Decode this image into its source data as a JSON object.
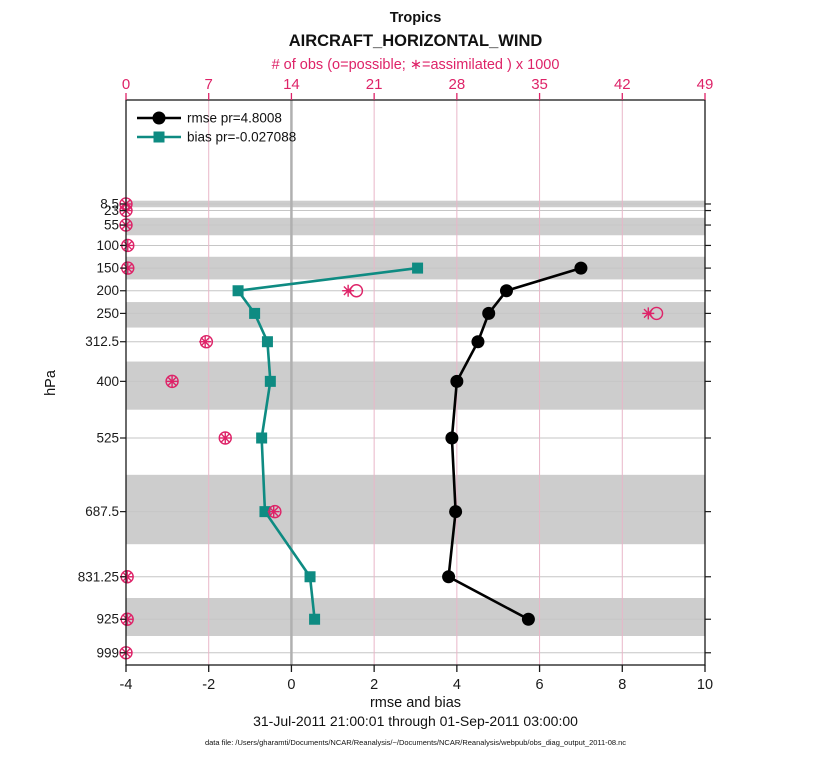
{
  "title": {
    "region": "Tropics",
    "variable": "AIRCRAFT_HORIZONTAL_WIND"
  },
  "axes": {
    "top": {
      "label": "# of obs (o=possible; ∗=assimilated ) x 1000",
      "ticks": [
        0,
        7,
        14,
        21,
        28,
        35,
        42,
        49
      ],
      "range": [
        0,
        49
      ],
      "color": "#de2368"
    },
    "bottom": {
      "label": "rmse and bias",
      "ticks": [
        -4,
        -2,
        0,
        2,
        4,
        6,
        8,
        10
      ],
      "range": [
        -4,
        10
      ]
    },
    "left": {
      "label": "hPa"
    }
  },
  "legend": {
    "rmse": {
      "label": "rmse pr=4.8008",
      "color": "#000000",
      "marker": "circle"
    },
    "bias": {
      "label": "bias pr=-0.027088",
      "color": "#0e8b82",
      "marker": "square"
    }
  },
  "footer": {
    "timespan": "31-Jul-2011 21:00:01 through 01-Sep-2011 03:00:00",
    "datafile": "data file: /Users/gharamti/Documents/NCAR/Reanalysis/~/Documents/NCAR/Reanalysis/webpub/obs_diag_output_2011-08.nc"
  },
  "colors": {
    "pink": "#de2368",
    "pink_grid": "#e9b6c8",
    "teal": "#0e8b82",
    "band_gray": "#cdcdcd",
    "level_line": "#c6c6c6",
    "zero_line": "#b0b0b0",
    "axis_black": "#1a1a1a"
  },
  "chart_data": {
    "type": "line",
    "profile_axis": "pressure_hPa_linear",
    "levels_hpa": [
      8.5,
      23,
      55,
      100,
      150,
      200,
      250,
      312.5,
      400,
      525,
      687.5,
      831.25,
      925,
      999
    ],
    "shaded_levels_hpa": [
      8.5,
      55,
      150,
      250,
      400,
      687.5,
      925
    ],
    "ylim_pressure": [
      -221,
      1026
    ],
    "xlim_rmse_bias": [
      -4,
      10
    ],
    "xlim_obs_thousands": [
      0,
      49
    ],
    "zero_reference_x": 0,
    "series": [
      {
        "name": "rmse",
        "marker": "circle",
        "color": "#000000",
        "points": [
          {
            "level": 150,
            "value": 7.0
          },
          {
            "level": 200,
            "value": 5.2
          },
          {
            "level": 250,
            "value": 4.77
          },
          {
            "level": 312.5,
            "value": 4.51
          },
          {
            "level": 400,
            "value": 4.0
          },
          {
            "level": 525,
            "value": 3.88
          },
          {
            "level": 687.5,
            "value": 3.97
          },
          {
            "level": 831.25,
            "value": 3.8
          },
          {
            "level": 925,
            "value": 5.73
          }
        ]
      },
      {
        "name": "bias",
        "marker": "square",
        "color": "#0e8b82",
        "points": [
          {
            "level": 150,
            "value": 3.05
          },
          {
            "level": 200,
            "value": -1.29
          },
          {
            "level": 250,
            "value": -0.89
          },
          {
            "level": 312.5,
            "value": -0.58
          },
          {
            "level": 400,
            "value": -0.51
          },
          {
            "level": 525,
            "value": -0.72
          },
          {
            "level": 687.5,
            "value": -0.64
          },
          {
            "level": 831.25,
            "value": 0.45
          },
          {
            "level": 925,
            "value": 0.56
          }
        ]
      }
    ],
    "obs_counts_x1000": [
      {
        "level": 8.5,
        "possible": 0,
        "assimilated": 0
      },
      {
        "level": 23,
        "possible": 0,
        "assimilated": 0
      },
      {
        "level": 55,
        "possible": 0,
        "assimilated": 0
      },
      {
        "level": 100,
        "possible": 0.15,
        "assimilated": 0.15
      },
      {
        "level": 150,
        "possible": 0.15,
        "assimilated": 0.15
      },
      {
        "level": 200,
        "possible": 19.5,
        "assimilated": 18.8
      },
      {
        "level": 250,
        "possible": 44.9,
        "assimilated": 44.2
      },
      {
        "level": 312.5,
        "possible": 6.8,
        "assimilated": 6.7
      },
      {
        "level": 400,
        "possible": 3.9,
        "assimilated": 3.9
      },
      {
        "level": 525,
        "possible": 8.4,
        "assimilated": 8.4
      },
      {
        "level": 687.5,
        "possible": 12.6,
        "assimilated": 12.5
      },
      {
        "level": 831.25,
        "possible": 0.1,
        "assimilated": 0.1
      },
      {
        "level": 925,
        "possible": 0.1,
        "assimilated": 0.1
      },
      {
        "level": 999,
        "possible": 0,
        "assimilated": 0
      }
    ]
  }
}
